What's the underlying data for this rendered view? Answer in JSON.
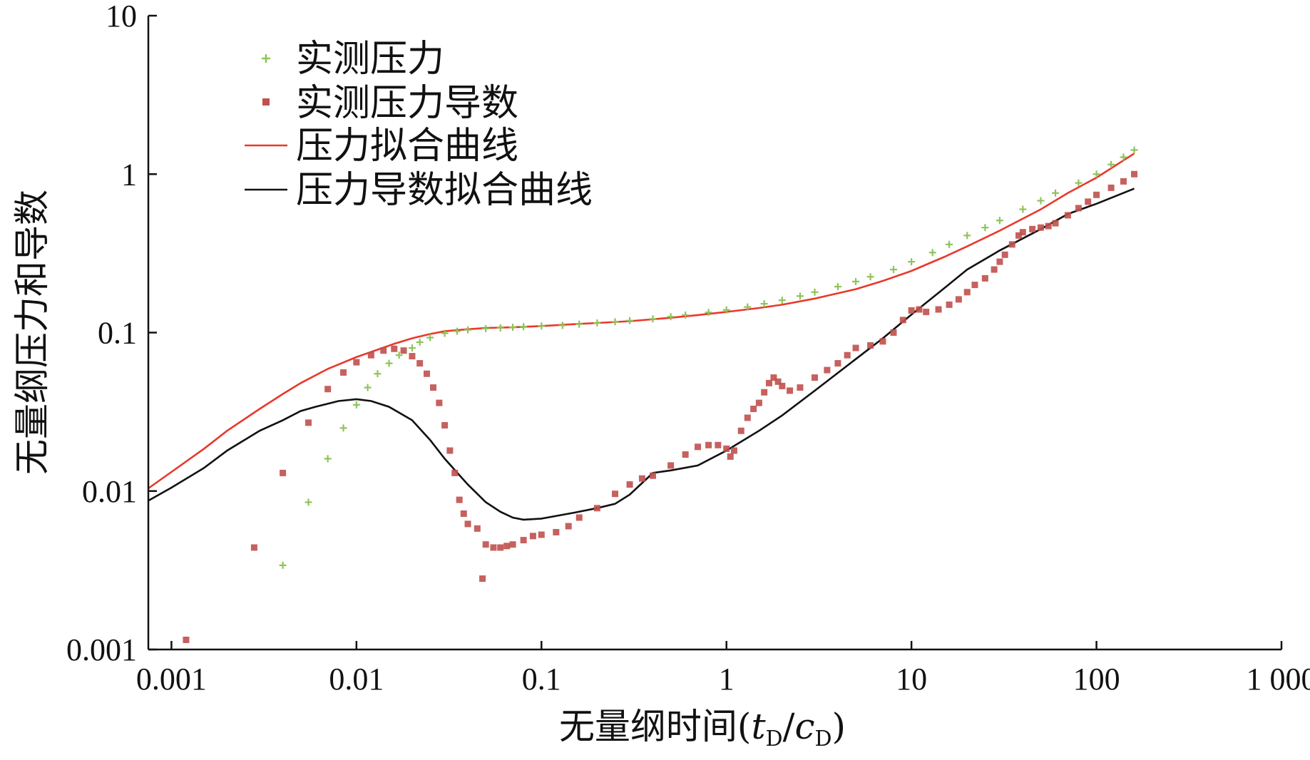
{
  "chart_data": {
    "type": "scatter",
    "xscale": "log",
    "yscale": "log",
    "xlim": [
      0.00075,
      1000
    ],
    "ylim": [
      0.001,
      10
    ],
    "xlabel": "无量纲时间(tD/cD)",
    "xlabel_parts": {
      "main": "无量纲时间(",
      "t": "t",
      "tsub": "D",
      "slash": "/",
      "c": "c",
      "csub": "D",
      "close": ")"
    },
    "ylabel": "无量纲压力和导数",
    "x_ticks": [
      0.001,
      0.01,
      0.1,
      1,
      10,
      100,
      1000
    ],
    "x_tick_labels": [
      "0.001",
      "0.01",
      "0.1",
      "1",
      "10",
      "100",
      "1 000"
    ],
    "y_ticks": [
      0.001,
      0.01,
      0.1,
      1,
      10
    ],
    "y_tick_labels": [
      "0.001",
      "0.01",
      "0.1",
      "1",
      "10"
    ],
    "grid": false,
    "legend_position": "top-left",
    "series": [
      {
        "name": "实测压力",
        "kind": "points",
        "marker": "cross",
        "color": "#8fc35a",
        "points": [
          [
            0.004,
            0.0034
          ],
          [
            0.0055,
            0.0085
          ],
          [
            0.007,
            0.016
          ],
          [
            0.0085,
            0.025
          ],
          [
            0.01,
            0.035
          ],
          [
            0.0115,
            0.045
          ],
          [
            0.013,
            0.055
          ],
          [
            0.015,
            0.064
          ],
          [
            0.017,
            0.072
          ],
          [
            0.02,
            0.08
          ],
          [
            0.022,
            0.087
          ],
          [
            0.025,
            0.093
          ],
          [
            0.03,
            0.099
          ],
          [
            0.035,
            0.102
          ],
          [
            0.04,
            0.104
          ],
          [
            0.05,
            0.106
          ],
          [
            0.06,
            0.107
          ],
          [
            0.07,
            0.108
          ],
          [
            0.08,
            0.109
          ],
          [
            0.1,
            0.11
          ],
          [
            0.13,
            0.111
          ],
          [
            0.16,
            0.113
          ],
          [
            0.2,
            0.115
          ],
          [
            0.25,
            0.117
          ],
          [
            0.3,
            0.119
          ],
          [
            0.4,
            0.122
          ],
          [
            0.5,
            0.126
          ],
          [
            0.6,
            0.129
          ],
          [
            0.8,
            0.134
          ],
          [
            1,
            0.139
          ],
          [
            1.3,
            0.145
          ],
          [
            1.6,
            0.152
          ],
          [
            2,
            0.16
          ],
          [
            2.5,
            0.17
          ],
          [
            3,
            0.18
          ],
          [
            4,
            0.195
          ],
          [
            5,
            0.21
          ],
          [
            6,
            0.225
          ],
          [
            8,
            0.25
          ],
          [
            10,
            0.28
          ],
          [
            13,
            0.32
          ],
          [
            16,
            0.36
          ],
          [
            20,
            0.41
          ],
          [
            25,
            0.46
          ],
          [
            30,
            0.51
          ],
          [
            40,
            0.6
          ],
          [
            50,
            0.68
          ],
          [
            60,
            0.76
          ],
          [
            80,
            0.88
          ],
          [
            100,
            1.0
          ],
          [
            120,
            1.15
          ],
          [
            140,
            1.28
          ],
          [
            160,
            1.42
          ]
        ]
      },
      {
        "name": "实测压力导数",
        "kind": "points",
        "marker": "square",
        "color": "#c0504d",
        "points": [
          [
            0.0012,
            0.00115
          ],
          [
            0.0028,
            0.0044
          ],
          [
            0.004,
            0.013
          ],
          [
            0.0055,
            0.027
          ],
          [
            0.007,
            0.044
          ],
          [
            0.0085,
            0.056
          ],
          [
            0.01,
            0.065
          ],
          [
            0.012,
            0.072
          ],
          [
            0.014,
            0.077
          ],
          [
            0.016,
            0.079
          ],
          [
            0.018,
            0.077
          ],
          [
            0.02,
            0.071
          ],
          [
            0.022,
            0.064
          ],
          [
            0.024,
            0.055
          ],
          [
            0.026,
            0.045
          ],
          [
            0.028,
            0.036
          ],
          [
            0.03,
            0.026
          ],
          [
            0.032,
            0.018
          ],
          [
            0.034,
            0.013
          ],
          [
            0.036,
            0.0088
          ],
          [
            0.038,
            0.0072
          ],
          [
            0.04,
            0.0062
          ],
          [
            0.045,
            0.0058
          ],
          [
            0.048,
            0.0028
          ],
          [
            0.05,
            0.0046
          ],
          [
            0.055,
            0.0044
          ],
          [
            0.06,
            0.0044
          ],
          [
            0.065,
            0.0045
          ],
          [
            0.07,
            0.0046
          ],
          [
            0.08,
            0.0049
          ],
          [
            0.09,
            0.0052
          ],
          [
            0.1,
            0.0053
          ],
          [
            0.12,
            0.0055
          ],
          [
            0.14,
            0.006
          ],
          [
            0.16,
            0.0068
          ],
          [
            0.2,
            0.0078
          ],
          [
            0.25,
            0.0096
          ],
          [
            0.3,
            0.011
          ],
          [
            0.35,
            0.012
          ],
          [
            0.4,
            0.0125
          ],
          [
            0.5,
            0.0145
          ],
          [
            0.6,
            0.017
          ],
          [
            0.7,
            0.019
          ],
          [
            0.8,
            0.0195
          ],
          [
            0.9,
            0.0195
          ],
          [
            1.0,
            0.0185
          ],
          [
            1.05,
            0.0165
          ],
          [
            1.1,
            0.018
          ],
          [
            1.2,
            0.024
          ],
          [
            1.3,
            0.029
          ],
          [
            1.4,
            0.033
          ],
          [
            1.5,
            0.036
          ],
          [
            1.6,
            0.042
          ],
          [
            1.7,
            0.048
          ],
          [
            1.8,
            0.052
          ],
          [
            1.9,
            0.049
          ],
          [
            2.0,
            0.046
          ],
          [
            2.2,
            0.043
          ],
          [
            2.5,
            0.045
          ],
          [
            3.0,
            0.052
          ],
          [
            3.5,
            0.058
          ],
          [
            4.0,
            0.064
          ],
          [
            4.5,
            0.072
          ],
          [
            5.0,
            0.08
          ],
          [
            6.0,
            0.083
          ],
          [
            7.0,
            0.088
          ],
          [
            8.0,
            0.1
          ],
          [
            9.0,
            0.12
          ],
          [
            10,
            0.138
          ],
          [
            11,
            0.14
          ],
          [
            12,
            0.135
          ],
          [
            14,
            0.14
          ],
          [
            16,
            0.15
          ],
          [
            18,
            0.162
          ],
          [
            20,
            0.18
          ],
          [
            22,
            0.2
          ],
          [
            25,
            0.22
          ],
          [
            28,
            0.25
          ],
          [
            30,
            0.28
          ],
          [
            32,
            0.31
          ],
          [
            35,
            0.36
          ],
          [
            38,
            0.41
          ],
          [
            40,
            0.43
          ],
          [
            45,
            0.45
          ],
          [
            50,
            0.46
          ],
          [
            55,
            0.47
          ],
          [
            60,
            0.49
          ],
          [
            70,
            0.55
          ],
          [
            80,
            0.61
          ],
          [
            90,
            0.67
          ],
          [
            100,
            0.74
          ],
          [
            120,
            0.82
          ],
          [
            140,
            0.9
          ],
          [
            160,
            1.0
          ]
        ]
      },
      {
        "name": "压力拟合曲线",
        "kind": "line",
        "color": "#e8392b",
        "points": [
          [
            0.00075,
            0.0104
          ],
          [
            0.001,
            0.0132
          ],
          [
            0.0015,
            0.0185
          ],
          [
            0.002,
            0.024
          ],
          [
            0.003,
            0.033
          ],
          [
            0.004,
            0.041
          ],
          [
            0.005,
            0.048
          ],
          [
            0.007,
            0.059
          ],
          [
            0.01,
            0.07
          ],
          [
            0.013,
            0.078
          ],
          [
            0.016,
            0.085
          ],
          [
            0.02,
            0.092
          ],
          [
            0.025,
            0.098
          ],
          [
            0.03,
            0.102
          ],
          [
            0.04,
            0.105
          ],
          [
            0.05,
            0.107
          ],
          [
            0.07,
            0.108
          ],
          [
            0.1,
            0.11
          ],
          [
            0.15,
            0.113
          ],
          [
            0.2,
            0.115
          ],
          [
            0.3,
            0.118
          ],
          [
            0.5,
            0.124
          ],
          [
            0.7,
            0.129
          ],
          [
            1,
            0.135
          ],
          [
            1.5,
            0.143
          ],
          [
            2,
            0.15
          ],
          [
            3,
            0.164
          ],
          [
            5,
            0.188
          ],
          [
            7,
            0.212
          ],
          [
            10,
            0.245
          ],
          [
            15,
            0.3
          ],
          [
            20,
            0.35
          ],
          [
            30,
            0.44
          ],
          [
            50,
            0.6
          ],
          [
            70,
            0.76
          ],
          [
            100,
            0.95
          ],
          [
            160,
            1.35
          ]
        ]
      },
      {
        "name": "压力导数拟合曲线",
        "kind": "line",
        "color": "#111111",
        "points": [
          [
            0.00075,
            0.0087
          ],
          [
            0.001,
            0.0105
          ],
          [
            0.0015,
            0.014
          ],
          [
            0.002,
            0.018
          ],
          [
            0.003,
            0.024
          ],
          [
            0.004,
            0.028
          ],
          [
            0.005,
            0.032
          ],
          [
            0.006,
            0.034
          ],
          [
            0.008,
            0.037
          ],
          [
            0.01,
            0.038
          ],
          [
            0.012,
            0.037
          ],
          [
            0.015,
            0.034
          ],
          [
            0.02,
            0.028
          ],
          [
            0.025,
            0.021
          ],
          [
            0.03,
            0.016
          ],
          [
            0.04,
            0.011
          ],
          [
            0.05,
            0.0085
          ],
          [
            0.06,
            0.0074
          ],
          [
            0.07,
            0.0068
          ],
          [
            0.08,
            0.0066
          ],
          [
            0.1,
            0.0067
          ],
          [
            0.15,
            0.0073
          ],
          [
            0.2,
            0.0078
          ],
          [
            0.25,
            0.0083
          ],
          [
            0.3,
            0.0095
          ],
          [
            0.4,
            0.013
          ],
          [
            0.5,
            0.0135
          ],
          [
            0.7,
            0.0145
          ],
          [
            1,
            0.018
          ],
          [
            1.5,
            0.024
          ],
          [
            2,
            0.03
          ],
          [
            3,
            0.043
          ],
          [
            5,
            0.068
          ],
          [
            7,
            0.092
          ],
          [
            10,
            0.13
          ],
          [
            15,
            0.19
          ],
          [
            20,
            0.25
          ],
          [
            30,
            0.33
          ],
          [
            50,
            0.45
          ],
          [
            70,
            0.56
          ],
          [
            100,
            0.65
          ],
          [
            160,
            0.81
          ]
        ]
      }
    ]
  }
}
